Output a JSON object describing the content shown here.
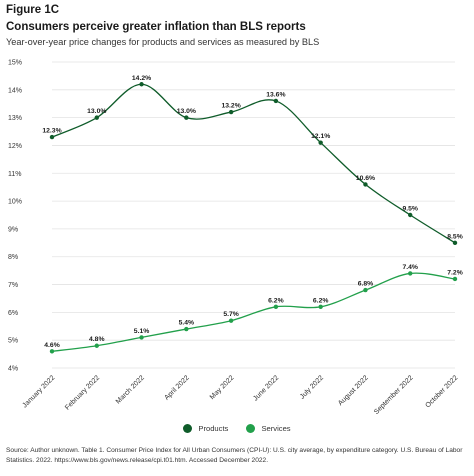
{
  "figure_label": "Figure 1C",
  "title": "Consumers perceive greater inflation than BLS reports",
  "subtitle": "Year-over-year price changes for products and services as measured by BLS",
  "source": "Source: Author unknown. Table 1. Consumer Price Index for All Urban Consumers (CPI-U): U.S. city average, by expenditure category. U.S. Bureau of Labor Statistics. 2022. https://www.bls.gov/news.release/cpi.t01.htm. Accessed December 2022.",
  "colors": {
    "products": "#0f5c2a",
    "services": "#22a04b",
    "grid": "#e3e3e3",
    "label": "#1a1a1a"
  },
  "chart_data": {
    "type": "line",
    "categories": [
      "January 2022",
      "February 2022",
      "March 2022",
      "April 2022",
      "May 2022",
      "June 2022",
      "July 2022",
      "August 2022",
      "September 2022",
      "October 2022"
    ],
    "series": [
      {
        "name": "Products",
        "values": [
          12.3,
          13.0,
          14.2,
          13.0,
          13.2,
          13.6,
          12.1,
          10.6,
          9.5,
          8.5
        ],
        "labels": [
          "12.3%",
          "13.0%",
          "14.2%",
          "13.0%",
          "13.2%",
          "13.6%",
          "12.1%",
          "10.6%",
          "9.5%",
          "8.5%"
        ],
        "color": "#0f5c2a"
      },
      {
        "name": "Services",
        "values": [
          4.6,
          4.8,
          5.1,
          5.4,
          5.7,
          6.2,
          6.2,
          6.8,
          7.4,
          7.2
        ],
        "labels": [
          "4.6%",
          "4.8%",
          "5.1%",
          "5.4%",
          "5.7%",
          "6.2%",
          "6.2%",
          "6.8%",
          "7.4%",
          "7.2%"
        ],
        "color": "#22a04b"
      }
    ],
    "y_ticks": [
      4,
      5,
      6,
      7,
      8,
      9,
      10,
      11,
      12,
      13,
      14,
      15
    ],
    "y_tick_labels": [
      "4%",
      "5%",
      "6%",
      "7%",
      "8%",
      "9%",
      "10%",
      "11%",
      "12%",
      "13%",
      "14%",
      "15%"
    ],
    "ylim": [
      4,
      15
    ],
    "grid": true,
    "legend_position": "bottom-center"
  }
}
